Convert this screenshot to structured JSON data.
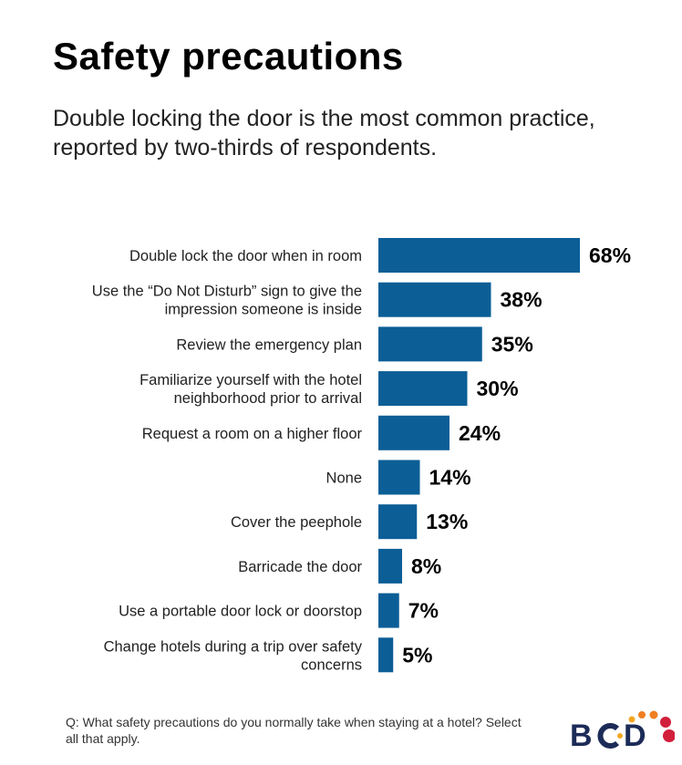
{
  "title": "Safety precautions",
  "subtitle": "Double locking the door is the most common practice, reported by two-thirds of respondents.",
  "footnote": "Q: What safety precautions do you normally take when staying at a hotel? Select all that apply.",
  "logo": "BCD",
  "colors": {
    "bar": "#0b5e96",
    "logo_text": "#1c2b57",
    "logo_dot_orange": "#f5a623",
    "logo_dot_red": "#d11f3c"
  },
  "chart_data": {
    "type": "bar",
    "orientation": "horizontal",
    "title": "Safety precautions",
    "unit": "%",
    "grid": false,
    "xlim": [
      0,
      68
    ],
    "categories": [
      [
        "Double lock the door when in room"
      ],
      [
        "Use the “Do Not Disturb” sign to give the",
        "impression someone is inside"
      ],
      [
        "Review the emergency plan"
      ],
      [
        "Familiarize yourself with the hotel",
        "neighborhood prior to arrival"
      ],
      [
        "Request a room on a higher floor"
      ],
      [
        "None"
      ],
      [
        "Cover the peephole"
      ],
      [
        "Barricade the door"
      ],
      [
        "Use a portable door lock or doorstop"
      ],
      [
        "Change hotels during a trip over safety",
        "concerns"
      ]
    ],
    "values": [
      68,
      38,
      35,
      30,
      24,
      14,
      13,
      8,
      7,
      5
    ],
    "data_labels": [
      "68%",
      "38%",
      "35%",
      "30%",
      "24%",
      "14%",
      "13%",
      "8%",
      "7%",
      "5%"
    ]
  }
}
